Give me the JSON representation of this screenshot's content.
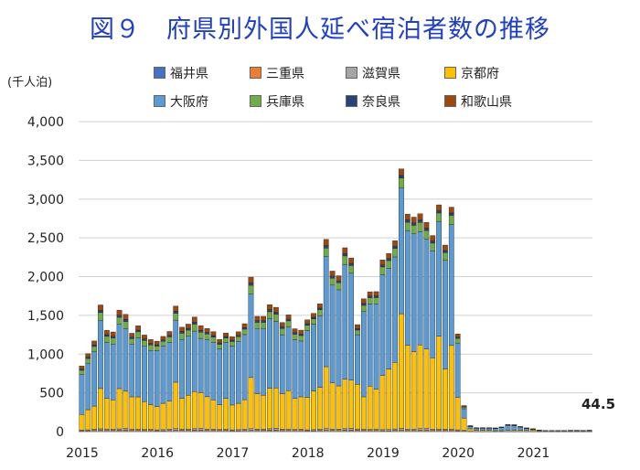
{
  "title": "図９　府県別外国人延べ宿泊者数の推移",
  "unit_label": "(千人泊)",
  "final_value_label": "44.5",
  "chart_data": {
    "type": "bar",
    "stacked": true,
    "title": "図９　府県別外国人延べ宿泊者数の推移",
    "ylabel": "(千人泊)",
    "ylim": [
      0,
      4000
    ],
    "yticks": [
      "0",
      "500",
      "1,000",
      "1,500",
      "2,000",
      "2,500",
      "3,000",
      "3,500",
      "4,000"
    ],
    "ytick_values": [
      0,
      500,
      1000,
      1500,
      2000,
      2500,
      3000,
      3500,
      4000
    ],
    "xtick_labels": [
      "2015",
      "2016",
      "2017",
      "2018",
      "2019",
      "2020",
      "2021"
    ],
    "xtick_index": [
      0,
      12,
      24,
      36,
      48,
      60,
      72
    ],
    "grid": true,
    "legend_position": "top",
    "annotation": "44.5",
    "months_count": 82,
    "series": [
      {
        "name": "福井県",
        "color": "#4472c4",
        "values": [
          3,
          3,
          4,
          4,
          4,
          4,
          5,
          5,
          4,
          4,
          4,
          4,
          3,
          3,
          4,
          4,
          4,
          4,
          5,
          5,
          4,
          4,
          4,
          4,
          3,
          3,
          4,
          4,
          4,
          4,
          5,
          5,
          4,
          4,
          4,
          4,
          3,
          3,
          4,
          4,
          4,
          4,
          5,
          5,
          4,
          4,
          4,
          4,
          3,
          3,
          4,
          4,
          4,
          4,
          5,
          5,
          4,
          4,
          4,
          4,
          3,
          2,
          1,
          0,
          0,
          0,
          0,
          0,
          0,
          0,
          0,
          0,
          0,
          0,
          0,
          0,
          0,
          0,
          0,
          0,
          0,
          0
        ]
      },
      {
        "name": "三重県",
        "color": "#ed7d31",
        "values": [
          8,
          8,
          10,
          12,
          10,
          10,
          12,
          14,
          10,
          10,
          10,
          10,
          8,
          8,
          10,
          12,
          10,
          10,
          12,
          14,
          10,
          10,
          10,
          10,
          8,
          8,
          10,
          12,
          10,
          10,
          12,
          14,
          10,
          10,
          10,
          10,
          8,
          8,
          10,
          12,
          10,
          10,
          12,
          14,
          10,
          10,
          10,
          10,
          8,
          8,
          10,
          12,
          10,
          10,
          12,
          14,
          10,
          10,
          10,
          10,
          8,
          5,
          2,
          1,
          1,
          1,
          1,
          1,
          1,
          1,
          1,
          1,
          1,
          1,
          1,
          1,
          1,
          1,
          1,
          1,
          1,
          1
        ]
      },
      {
        "name": "滋賀県",
        "color": "#a5a5a5",
        "values": [
          10,
          12,
          15,
          20,
          15,
          15,
          18,
          22,
          15,
          14,
          12,
          14,
          12,
          14,
          18,
          22,
          16,
          16,
          20,
          24,
          16,
          15,
          13,
          15,
          12,
          14,
          18,
          22,
          16,
          16,
          20,
          24,
          16,
          15,
          13,
          15,
          12,
          14,
          18,
          22,
          16,
          16,
          20,
          24,
          16,
          15,
          13,
          15,
          14,
          16,
          20,
          25,
          18,
          18,
          22,
          26,
          18,
          17,
          15,
          17,
          12,
          8,
          3,
          1,
          1,
          1,
          1,
          1,
          1,
          1,
          1,
          1,
          1,
          1,
          1,
          1,
          1,
          1,
          1,
          1,
          1,
          1
        ]
      },
      {
        "name": "京都府",
        "color": "#ffc000",
        "values": [
          200,
          260,
          300,
          520,
          400,
          380,
          520,
          480,
          420,
          420,
          360,
          320,
          300,
          340,
          360,
          600,
          400,
          440,
          480,
          460,
          420,
          380,
          320,
          400,
          320,
          340,
          380,
          660,
          460,
          440,
          520,
          520,
          460,
          500,
          400,
          420,
          420,
          500,
          540,
          800,
          600,
          560,
          640,
          620,
          580,
          420,
          560,
          520,
          700,
          780,
          860,
          1480,
          1080,
          1000,
          1080,
          1020,
          920,
          1200,
          780,
          1080,
          420,
          160,
          30,
          15,
          15,
          15,
          10,
          10,
          12,
          15,
          15,
          12,
          18,
          8,
          3,
          4,
          4,
          4,
          5,
          5,
          4,
          5
        ]
      },
      {
        "name": "大阪府",
        "color": "#5b9bd5",
        "values": [
          520,
          600,
          700,
          880,
          720,
          720,
          830,
          810,
          680,
          760,
          720,
          700,
          720,
          740,
          760,
          800,
          760,
          760,
          780,
          700,
          740,
          740,
          720,
          720,
          760,
          800,
          840,
          1080,
          840,
          860,
          900,
          860,
          760,
          820,
          760,
          720,
          860,
          860,
          920,
          1420,
          1260,
          1240,
          1480,
          1380,
          640,
          1100,
          1060,
          1100,
          1300,
          1300,
          1360,
          1620,
          1480,
          1520,
          1460,
          1420,
          1380,
          1480,
          1400,
          1560,
          700,
          120,
          30,
          28,
          28,
          28,
          30,
          40,
          65,
          60,
          40,
          28,
          12,
          8,
          8,
          6,
          6,
          7,
          7,
          7,
          7,
          8
        ]
      },
      {
        "name": "兵庫県",
        "color": "#70ad47",
        "values": [
          50,
          60,
          70,
          100,
          80,
          80,
          90,
          90,
          70,
          80,
          70,
          70,
          60,
          60,
          70,
          90,
          80,
          80,
          90,
          80,
          70,
          70,
          60,
          60,
          60,
          60,
          70,
          110,
          80,
          80,
          90,
          90,
          80,
          80,
          70,
          70,
          70,
          70,
          80,
          110,
          90,
          90,
          110,
          100,
          60,
          80,
          80,
          80,
          100,
          100,
          110,
          130,
          110,
          110,
          120,
          110,
          100,
          110,
          100,
          120,
          60,
          20,
          5,
          3,
          3,
          3,
          3,
          4,
          6,
          6,
          5,
          3,
          2,
          1,
          1,
          1,
          1,
          1,
          2,
          2,
          2,
          2
        ]
      },
      {
        "name": "奈良県",
        "color": "#264478",
        "values": [
          15,
          18,
          20,
          28,
          22,
          22,
          26,
          26,
          20,
          22,
          20,
          20,
          18,
          18,
          20,
          26,
          22,
          22,
          26,
          24,
          20,
          20,
          18,
          18,
          18,
          18,
          20,
          30,
          22,
          22,
          26,
          26,
          22,
          22,
          20,
          20,
          20,
          20,
          22,
          32,
          26,
          26,
          30,
          28,
          20,
          24,
          22,
          22,
          26,
          26,
          28,
          34,
          30,
          30,
          32,
          30,
          28,
          30,
          28,
          30,
          16,
          6,
          2,
          1,
          1,
          1,
          1,
          1,
          2,
          2,
          1,
          1,
          1,
          0,
          0,
          0,
          0,
          0,
          0,
          0,
          0,
          0
        ]
      },
      {
        "name": "和歌山県",
        "color": "#9e480e",
        "values": [
          40,
          45,
          50,
          70,
          55,
          55,
          65,
          65,
          50,
          55,
          50,
          50,
          45,
          45,
          50,
          65,
          55,
          55,
          65,
          60,
          50,
          50,
          45,
          45,
          45,
          45,
          50,
          75,
          55,
          55,
          65,
          65,
          55,
          55,
          50,
          50,
          50,
          50,
          55,
          80,
          65,
          65,
          75,
          70,
          50,
          60,
          55,
          55,
          65,
          65,
          70,
          85,
          75,
          75,
          80,
          75,
          70,
          75,
          70,
          75,
          40,
          15,
          4,
          2,
          2,
          2,
          2,
          3,
          4,
          4,
          3,
          2,
          2,
          1,
          1,
          1,
          1,
          1,
          1,
          1,
          1,
          1
        ]
      }
    ]
  }
}
